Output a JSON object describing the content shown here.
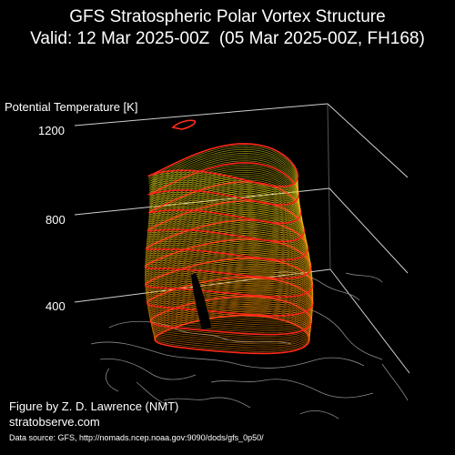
{
  "title": {
    "line1": "GFS Stratospheric Polar Vortex Structure",
    "line2": "Valid: 12 Mar 2025-00Z  (05 Mar 2025-00Z, FH168)"
  },
  "axis": {
    "label": "Potential Temperature [K]",
    "ticks": [
      "1200",
      "800",
      "400"
    ]
  },
  "credits": {
    "author": "Figure by Z. D. Lawrence (NMT)",
    "site": "stratobserve.com",
    "source": "Data source: GFS, http://nomads.ncep.noaa.gov:9090/dods/gfs_0p50/"
  },
  "colors": {
    "background": "#000000",
    "axis_lines": "#cfcfcf",
    "coastlines": "#8a8a8a",
    "vortex_low": "#ff8a00",
    "vortex_high": "#e6e61a",
    "isentrope_rings": "#ff2a1a"
  }
}
